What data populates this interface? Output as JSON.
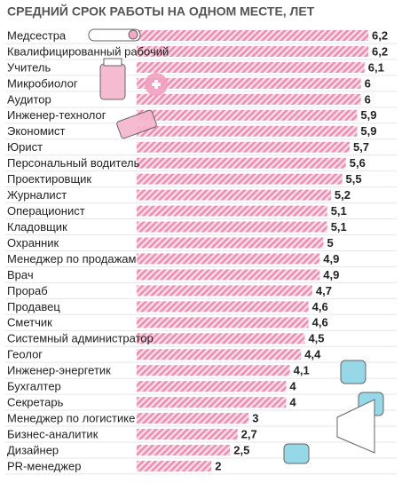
{
  "chart_data": {
    "type": "bar",
    "orientation": "horizontal",
    "title": "СРЕДНИЙ СРОК РАБОТЫ НА ОДНОМ МЕСТЕ, ЛЕТ",
    "categories": [
      "Медсестра",
      "Квалифицированный рабочий",
      "Учитель",
      "Микробиолог",
      "Аудитор",
      "Инженер-технолог",
      "Экономист",
      "Юрист",
      "Персональный водитель",
      "Проектировщик",
      "Журналист",
      "Операционист",
      "Кладовщик",
      "Охранник",
      "Менеджер по продажам",
      "Врач",
      "Прораб",
      "Продавец",
      "Сметчик",
      "Системный администратор",
      "Геолог",
      "Инженер-энергетик",
      "Бухгалтер",
      "Секретарь",
      "Менеджер по логистике",
      "Бизнес-аналитик",
      "Дизайнер",
      "PR-менеджер"
    ],
    "values": [
      6.2,
      6.2,
      6.1,
      6,
      6,
      5.9,
      5.9,
      5.7,
      5.6,
      5.5,
      5.2,
      5.1,
      5.1,
      5,
      4.9,
      4.9,
      4.7,
      4.6,
      4.6,
      4.5,
      4.4,
      4.1,
      4,
      4,
      3,
      2.7,
      2.5,
      2
    ],
    "value_labels": [
      "6,2",
      "6,2",
      "6,1",
      "6",
      "6",
      "5,9",
      "5,9",
      "5,7",
      "5,6",
      "5,5",
      "5,2",
      "5,1",
      "5,1",
      "5",
      "4,9",
      "4,9",
      "4,7",
      "4,6",
      "4,6",
      "4,5",
      "4,4",
      "4,1",
      "4",
      "4",
      "3",
      "2,7",
      "2,5",
      "2"
    ],
    "color": "#ec8fb1"
  }
}
